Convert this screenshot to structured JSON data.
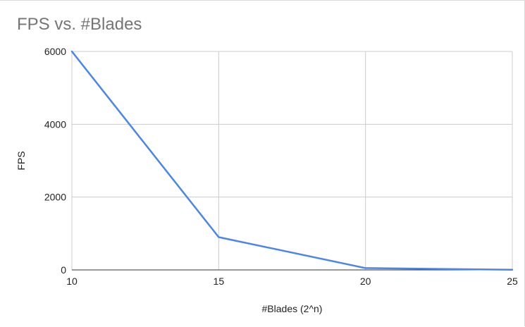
{
  "chart_data": {
    "type": "line",
    "title": "FPS vs. #Blades",
    "xlabel": "#Blades (2^n)",
    "ylabel": "FPS",
    "xlim": [
      10,
      25
    ],
    "ylim": [
      0,
      6000
    ],
    "x_ticks": [
      10,
      15,
      20,
      25
    ],
    "y_ticks": [
      0,
      2000,
      4000,
      6000
    ],
    "grid": true,
    "legend": "none",
    "series": [
      {
        "color": "#4a86e8",
        "x": [
          10,
          15,
          20,
          25
        ],
        "values": [
          6000,
          900,
          50,
          5
        ]
      }
    ]
  }
}
